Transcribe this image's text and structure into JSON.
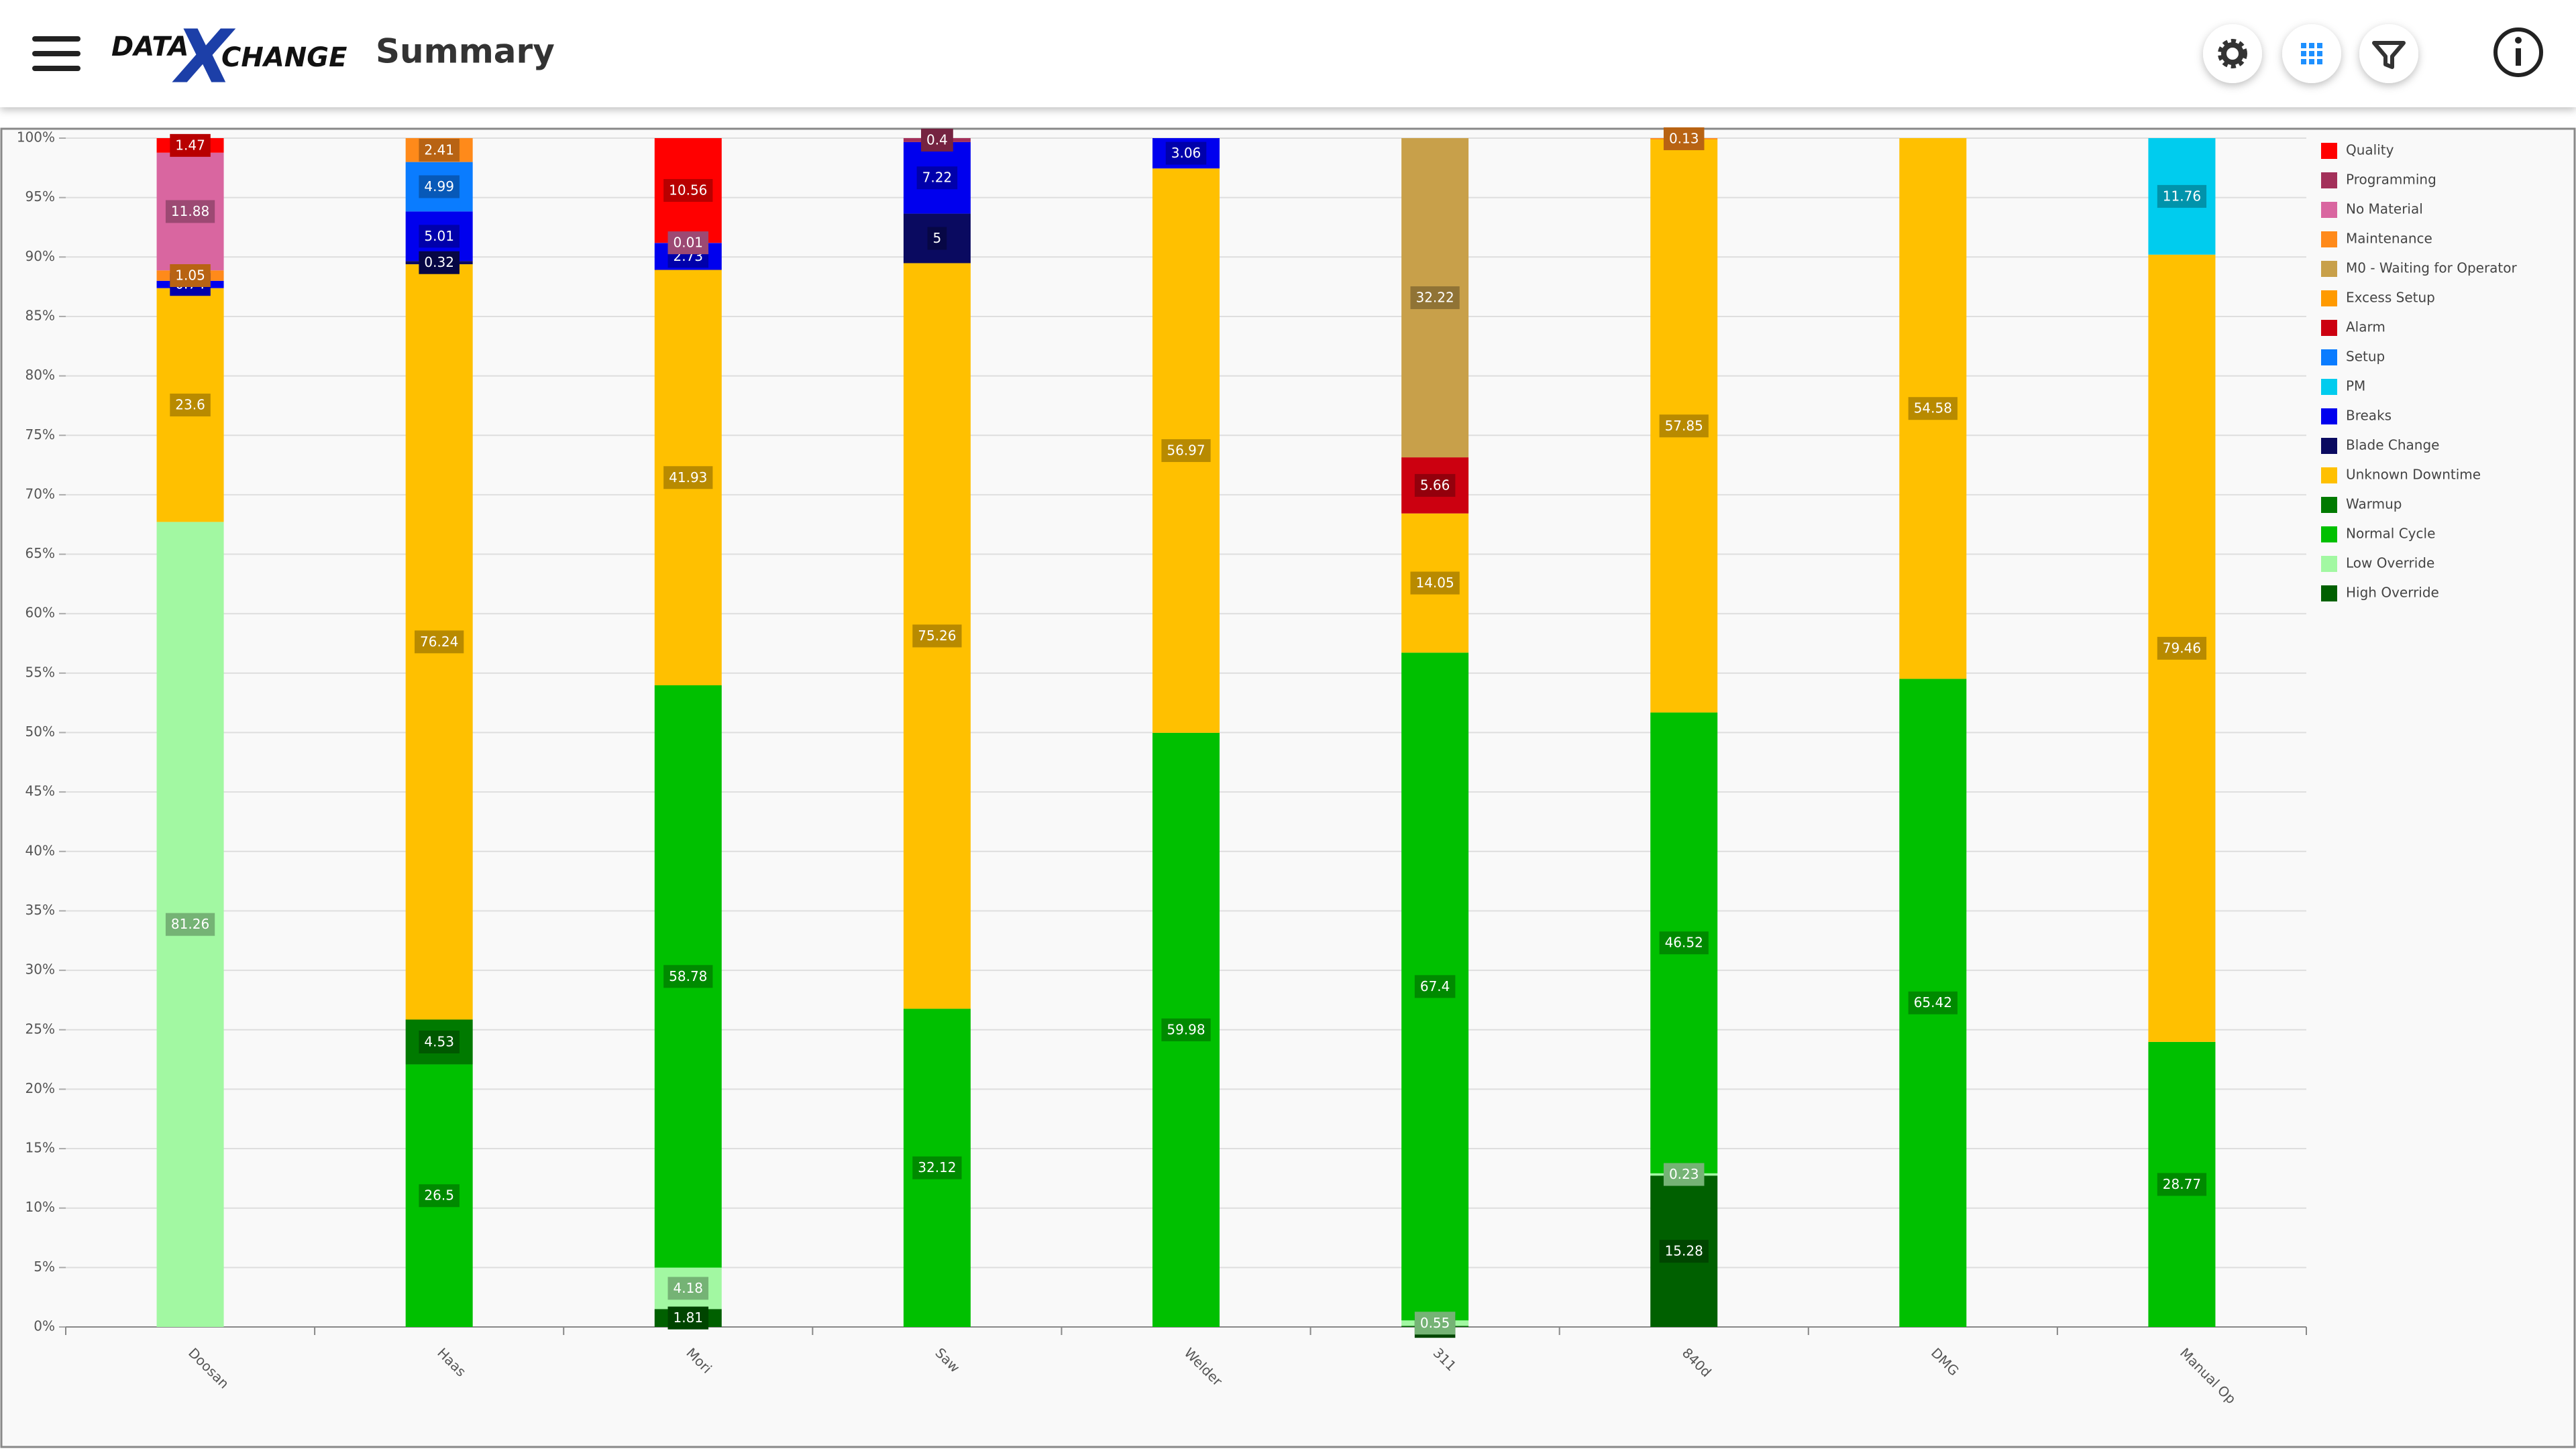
{
  "header": {
    "logo_parts": [
      "DATA",
      "X",
      "CHANGE"
    ],
    "title": "Summary"
  },
  "chart_data": {
    "type": "bar",
    "stack": "percent",
    "legend": "right",
    "grid": true,
    "categories": [
      "Doosan",
      "Haas",
      "Mori",
      "Saw",
      "Welder",
      "311",
      "840d",
      "DMG",
      "Manual Op"
    ],
    "ylim": [
      0,
      100
    ],
    "yticks": [
      {
        "value": 0,
        "label": "0%"
      },
      {
        "value": 5,
        "label": "5%"
      },
      {
        "value": 10,
        "label": "10%"
      },
      {
        "value": 15,
        "label": "15%"
      },
      {
        "value": 20,
        "label": "20%"
      },
      {
        "value": 25,
        "label": "25%"
      },
      {
        "value": 30,
        "label": "30%"
      },
      {
        "value": 35,
        "label": "35%"
      },
      {
        "value": 40,
        "label": "40%"
      },
      {
        "value": 45,
        "label": "45%"
      },
      {
        "value": 50,
        "label": "50%"
      },
      {
        "value": 55,
        "label": "55%"
      },
      {
        "value": 60,
        "label": "60%"
      },
      {
        "value": 65,
        "label": "65%"
      },
      {
        "value": 70,
        "label": "70%"
      },
      {
        "value": 75,
        "label": "75%"
      },
      {
        "value": 80,
        "label": "80%"
      },
      {
        "value": 85,
        "label": "85%"
      },
      {
        "value": 90,
        "label": "90%"
      },
      {
        "value": 95,
        "label": "95%"
      },
      {
        "value": 100,
        "label": "100%"
      }
    ],
    "series": [
      {
        "name": "Quality",
        "color": "#ff0000",
        "values": [
          1.47,
          null,
          10.56,
          null,
          null,
          null,
          null,
          null,
          null
        ]
      },
      {
        "name": "Programming",
        "color": "#a3305a",
        "values": [
          null,
          null,
          null,
          0.4,
          null,
          null,
          null,
          null,
          null
        ]
      },
      {
        "name": "No Material",
        "color": "#d966a0",
        "values": [
          11.88,
          null,
          0.01,
          null,
          null,
          null,
          null,
          null,
          null
        ]
      },
      {
        "name": "Maintenance",
        "color": "#ff8a1a",
        "values": [
          1.05,
          2.41,
          null,
          null,
          null,
          null,
          0.13,
          null,
          null
        ]
      },
      {
        "name": "M0 - Waiting for Operator",
        "color": "#c8a04a",
        "values": [
          null,
          null,
          null,
          null,
          null,
          32.22,
          null,
          null,
          null
        ]
      },
      {
        "name": "Excess Setup",
        "color": "#ff9a00",
        "values": [
          null,
          null,
          null,
          null,
          null,
          null,
          null,
          null,
          null
        ]
      },
      {
        "name": "Alarm",
        "color": "#cc0010",
        "values": [
          null,
          null,
          null,
          null,
          null,
          5.66,
          null,
          null,
          null
        ]
      },
      {
        "name": "Setup",
        "color": "#0a7cff",
        "values": [
          null,
          4.99,
          null,
          null,
          null,
          null,
          null,
          null,
          null
        ]
      },
      {
        "name": "PM",
        "color": "#00ccee",
        "values": [
          null,
          null,
          null,
          null,
          null,
          null,
          null,
          null,
          11.76
        ]
      },
      {
        "name": "Breaks",
        "color": "#0000ee",
        "values": [
          0.74,
          5.01,
          2.73,
          7.22,
          3.06,
          null,
          null,
          null,
          null
        ]
      },
      {
        "name": "Blade Change",
        "color": "#0a0a60",
        "values": [
          null,
          0.32,
          null,
          5,
          null,
          null,
          null,
          null,
          null
        ]
      },
      {
        "name": "Unknown Downtime",
        "color": "#ffc000",
        "values": [
          23.6,
          76.24,
          41.93,
          75.26,
          56.97,
          14.05,
          57.85,
          54.58,
          79.46
        ]
      },
      {
        "name": "Warmup",
        "color": "#007a00",
        "values": [
          null,
          4.53,
          null,
          null,
          null,
          null,
          null,
          null,
          null
        ]
      },
      {
        "name": "Normal Cycle",
        "color": "#00c000",
        "values": [
          null,
          26.5,
          58.78,
          32.12,
          59.98,
          67.4,
          46.52,
          65.42,
          28.77
        ]
      },
      {
        "name": "Low Override",
        "color": "#a2f8a2",
        "values": [
          81.26,
          null,
          4.18,
          null,
          null,
          0.55,
          0.23,
          null,
          null
        ]
      },
      {
        "name": "High Override",
        "color": "#006000",
        "values": [
          null,
          null,
          1.81,
          null,
          null,
          0.11,
          15.28,
          null,
          null
        ]
      }
    ]
  }
}
